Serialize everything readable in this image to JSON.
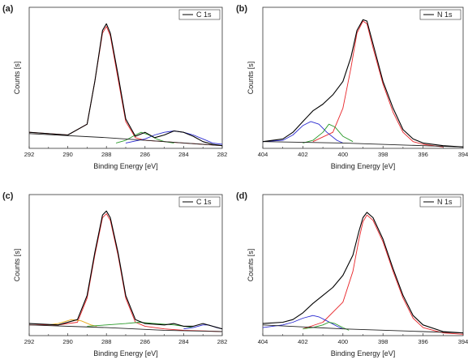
{
  "chart_data": [
    {
      "type": "line",
      "panel": "(a)",
      "xlabel": "Binding Energy [eV]",
      "ylabel": "Counts [s]",
      "xlim": [
        292,
        282
      ],
      "x_reversed": true,
      "xticks": [
        "292",
        "290",
        "288",
        "286",
        "284",
        "282"
      ],
      "legend": {
        "label": "C 1s",
        "position": "top-right"
      },
      "series": [
        {
          "color": "#000000",
          "points": [
            [
              292,
              0.12
            ],
            [
              290,
              0.1
            ],
            [
              289,
              0.18
            ],
            [
              288.6,
              0.5
            ],
            [
              288.2,
              0.88
            ],
            [
              288,
              0.93
            ],
            [
              287.8,
              0.86
            ],
            [
              287.4,
              0.55
            ],
            [
              287,
              0.22
            ],
            [
              286.5,
              0.09
            ],
            [
              286,
              0.12
            ],
            [
              285.5,
              0.08
            ],
            [
              285,
              0.1
            ],
            [
              284.5,
              0.13
            ],
            [
              284,
              0.12
            ],
            [
              283.5,
              0.09
            ],
            [
              283,
              0.05
            ],
            [
              282.5,
              0.03
            ],
            [
              282,
              0.02
            ]
          ]
        },
        {
          "color": "#e8262a",
          "points": [
            [
              292,
              0.12
            ],
            [
              290,
              0.1
            ],
            [
              289,
              0.18
            ],
            [
              288.6,
              0.5
            ],
            [
              288.2,
              0.86
            ],
            [
              288,
              0.91
            ],
            [
              287.8,
              0.84
            ],
            [
              287.4,
              0.52
            ],
            [
              287,
              0.2
            ],
            [
              286.5,
              0.08
            ],
            [
              286,
              0.06
            ],
            [
              285,
              0.05
            ],
            [
              284,
              0.04
            ],
            [
              283,
              0.03
            ],
            [
              282,
              0.02
            ]
          ]
        },
        {
          "color": "#2a9a2a",
          "points": [
            [
              287.5,
              0.04
            ],
            [
              287,
              0.06
            ],
            [
              286.5,
              0.1
            ],
            [
              286.2,
              0.12
            ],
            [
              285.8,
              0.1
            ],
            [
              285.4,
              0.07
            ],
            [
              285,
              0.05
            ],
            [
              284.5,
              0.04
            ]
          ]
        },
        {
          "color": "#2a2ad0",
          "points": [
            [
              287,
              0.04
            ],
            [
              286,
              0.07
            ],
            [
              285.5,
              0.1
            ],
            [
              285,
              0.12
            ],
            [
              284.5,
              0.13
            ],
            [
              284,
              0.12
            ],
            [
              283.5,
              0.1
            ],
            [
              283,
              0.07
            ],
            [
              282.5,
              0.04
            ],
            [
              282,
              0.03
            ]
          ]
        },
        {
          "color": "#222222",
          "points": [
            [
              292,
              0.11
            ],
            [
              288,
              0.08
            ],
            [
              285,
              0.05
            ],
            [
              282,
              0.02
            ]
          ]
        }
      ]
    },
    {
      "type": "line",
      "panel": "(b)",
      "xlabel": "Binding Energy [eV]",
      "ylabel": "Counts [s]",
      "xlim": [
        404,
        394
      ],
      "x_reversed": true,
      "xticks": [
        "404",
        "402",
        "400",
        "398",
        "396",
        "394"
      ],
      "legend": {
        "label": "N 1s",
        "position": "top-right"
      },
      "series": [
        {
          "color": "#000000",
          "points": [
            [
              404,
              0.05
            ],
            [
              403,
              0.07
            ],
            [
              402.5,
              0.12
            ],
            [
              402,
              0.2
            ],
            [
              401.5,
              0.28
            ],
            [
              401,
              0.33
            ],
            [
              400.5,
              0.4
            ],
            [
              400,
              0.5
            ],
            [
              399.6,
              0.68
            ],
            [
              399.3,
              0.88
            ],
            [
              399,
              0.96
            ],
            [
              398.8,
              0.95
            ],
            [
              398.5,
              0.78
            ],
            [
              398,
              0.5
            ],
            [
              397.5,
              0.3
            ],
            [
              397,
              0.14
            ],
            [
              396.5,
              0.07
            ],
            [
              396,
              0.04
            ],
            [
              395,
              0.02
            ],
            [
              394,
              0.01
            ]
          ]
        },
        {
          "color": "#e8262a",
          "points": [
            [
              401.5,
              0.05
            ],
            [
              400.5,
              0.12
            ],
            [
              400,
              0.3
            ],
            [
              399.6,
              0.6
            ],
            [
              399.3,
              0.86
            ],
            [
              399,
              0.95
            ],
            [
              398.8,
              0.93
            ],
            [
              398.5,
              0.75
            ],
            [
              398,
              0.48
            ],
            [
              397.5,
              0.27
            ],
            [
              397,
              0.12
            ],
            [
              396.5,
              0.05
            ],
            [
              396,
              0.03
            ],
            [
              395,
              0.01
            ]
          ]
        },
        {
          "color": "#2a2ad0",
          "points": [
            [
              404,
              0.05
            ],
            [
              403,
              0.06
            ],
            [
              402.5,
              0.1
            ],
            [
              402,
              0.17
            ],
            [
              401.6,
              0.2
            ],
            [
              401.2,
              0.18
            ],
            [
              400.8,
              0.12
            ],
            [
              400.3,
              0.06
            ],
            [
              400,
              0.04
            ]
          ]
        },
        {
          "color": "#2a9a2a",
          "points": [
            [
              402,
              0.04
            ],
            [
              401.5,
              0.06
            ],
            [
              401,
              0.12
            ],
            [
              400.7,
              0.18
            ],
            [
              400.4,
              0.16
            ],
            [
              400,
              0.09
            ],
            [
              399.5,
              0.05
            ]
          ]
        },
        {
          "color": "#222222",
          "points": [
            [
              404,
              0.05
            ],
            [
              400,
              0.04
            ],
            [
              396,
              0.02
            ],
            [
              394,
              0.01
            ]
          ]
        }
      ]
    },
    {
      "type": "line",
      "panel": "(c)",
      "xlabel": "Binding Energy [eV]",
      "ylabel": "Counts [s]",
      "xlim": [
        292,
        282
      ],
      "x_reversed": true,
      "xticks": [
        "292",
        "290",
        "288",
        "286",
        "284",
        "282"
      ],
      "legend": {
        "label": "C 1s",
        "position": "top-right"
      },
      "series": [
        {
          "color": "#000000",
          "points": [
            [
              292,
              0.09
            ],
            [
              290.5,
              0.08
            ],
            [
              289.5,
              0.12
            ],
            [
              289,
              0.3
            ],
            [
              288.6,
              0.62
            ],
            [
              288.2,
              0.9
            ],
            [
              288,
              0.93
            ],
            [
              287.8,
              0.88
            ],
            [
              287.4,
              0.62
            ],
            [
              287,
              0.3
            ],
            [
              286.5,
              0.12
            ],
            [
              286,
              0.09
            ],
            [
              285,
              0.08
            ],
            [
              284.5,
              0.09
            ],
            [
              284,
              0.07
            ],
            [
              283.5,
              0.07
            ],
            [
              283,
              0.09
            ],
            [
              282.5,
              0.07
            ],
            [
              282,
              0.05
            ]
          ]
        },
        {
          "color": "#e8262a",
          "points": [
            [
              292,
              0.08
            ],
            [
              290.5,
              0.08
            ],
            [
              289.5,
              0.1
            ],
            [
              289,
              0.28
            ],
            [
              288.6,
              0.6
            ],
            [
              288.2,
              0.88
            ],
            [
              288,
              0.91
            ],
            [
              287.8,
              0.86
            ],
            [
              287.4,
              0.6
            ],
            [
              287,
              0.28
            ],
            [
              286.5,
              0.1
            ],
            [
              286,
              0.07
            ],
            [
              285,
              0.05
            ],
            [
              284,
              0.04
            ],
            [
              282,
              0.03
            ]
          ]
        },
        {
          "color": "#e6a817",
          "points": [
            [
              291,
              0.08
            ],
            [
              290.5,
              0.09
            ],
            [
              289.8,
              0.12
            ],
            [
              289.3,
              0.11
            ],
            [
              288.8,
              0.08
            ],
            [
              288.5,
              0.07
            ]
          ]
        },
        {
          "color": "#2a9a2a",
          "points": [
            [
              289,
              0.07
            ],
            [
              288,
              0.08
            ],
            [
              287,
              0.09
            ],
            [
              286.3,
              0.1
            ],
            [
              285.5,
              0.09
            ],
            [
              284.5,
              0.08
            ],
            [
              284,
              0.07
            ],
            [
              283.5,
              0.06
            ]
          ]
        },
        {
          "color": "#2a2ad0",
          "points": [
            [
              284,
              0.05
            ],
            [
              283.5,
              0.06
            ],
            [
              283,
              0.08
            ],
            [
              282.7,
              0.08
            ],
            [
              282.3,
              0.06
            ],
            [
              282,
              0.05
            ]
          ]
        },
        {
          "color": "#222222",
          "points": [
            [
              292,
              0.08
            ],
            [
              288,
              0.06
            ],
            [
              285,
              0.04
            ],
            [
              282,
              0.03
            ]
          ]
        }
      ]
    },
    {
      "type": "line",
      "panel": "(d)",
      "xlabel": "Binding Energy [eV]",
      "ylabel": "Counts [s]",
      "xlim": [
        404,
        394
      ],
      "x_reversed": true,
      "xticks": [
        "404",
        "402",
        "400",
        "398",
        "396",
        "394"
      ],
      "legend": {
        "label": "N 1s",
        "position": "top-right"
      },
      "series": [
        {
          "color": "#000000",
          "points": [
            [
              404,
              0.09
            ],
            [
              403,
              0.1
            ],
            [
              402.5,
              0.12
            ],
            [
              402,
              0.17
            ],
            [
              401.5,
              0.24
            ],
            [
              401,
              0.3
            ],
            [
              400.5,
              0.36
            ],
            [
              400,
              0.45
            ],
            [
              399.5,
              0.6
            ],
            [
              399.2,
              0.78
            ],
            [
              399,
              0.88
            ],
            [
              398.8,
              0.92
            ],
            [
              398.5,
              0.88
            ],
            [
              398,
              0.72
            ],
            [
              397.5,
              0.5
            ],
            [
              397,
              0.3
            ],
            [
              396.5,
              0.15
            ],
            [
              396,
              0.08
            ],
            [
              395,
              0.03
            ],
            [
              394,
              0.02
            ]
          ]
        },
        {
          "color": "#e8262a",
          "points": [
            [
              402,
              0.05
            ],
            [
              401,
              0.1
            ],
            [
              400,
              0.25
            ],
            [
              399.5,
              0.48
            ],
            [
              399.2,
              0.72
            ],
            [
              399,
              0.85
            ],
            [
              398.8,
              0.9
            ],
            [
              398.5,
              0.86
            ],
            [
              398,
              0.7
            ],
            [
              397.5,
              0.48
            ],
            [
              397,
              0.28
            ],
            [
              396.5,
              0.13
            ],
            [
              396,
              0.06
            ],
            [
              395,
              0.02
            ],
            [
              394,
              0.01
            ]
          ]
        },
        {
          "color": "#2a2ad0",
          "points": [
            [
              404,
              0.06
            ],
            [
              403,
              0.08
            ],
            [
              402.5,
              0.1
            ],
            [
              402,
              0.13
            ],
            [
              401.5,
              0.15
            ],
            [
              401.2,
              0.14
            ],
            [
              400.8,
              0.11
            ],
            [
              400.3,
              0.07
            ],
            [
              400,
              0.05
            ]
          ]
        },
        {
          "color": "#2a9a2a",
          "points": [
            [
              402,
              0.05
            ],
            [
              401.5,
              0.06
            ],
            [
              401,
              0.08
            ],
            [
              400.7,
              0.1
            ],
            [
              400.4,
              0.09
            ],
            [
              400,
              0.06
            ],
            [
              399.7,
              0.04
            ]
          ]
        },
        {
          "color": "#222222",
          "points": [
            [
              404,
              0.08
            ],
            [
              400,
              0.05
            ],
            [
              396,
              0.03
            ],
            [
              394,
              0.02
            ]
          ]
        }
      ]
    }
  ]
}
